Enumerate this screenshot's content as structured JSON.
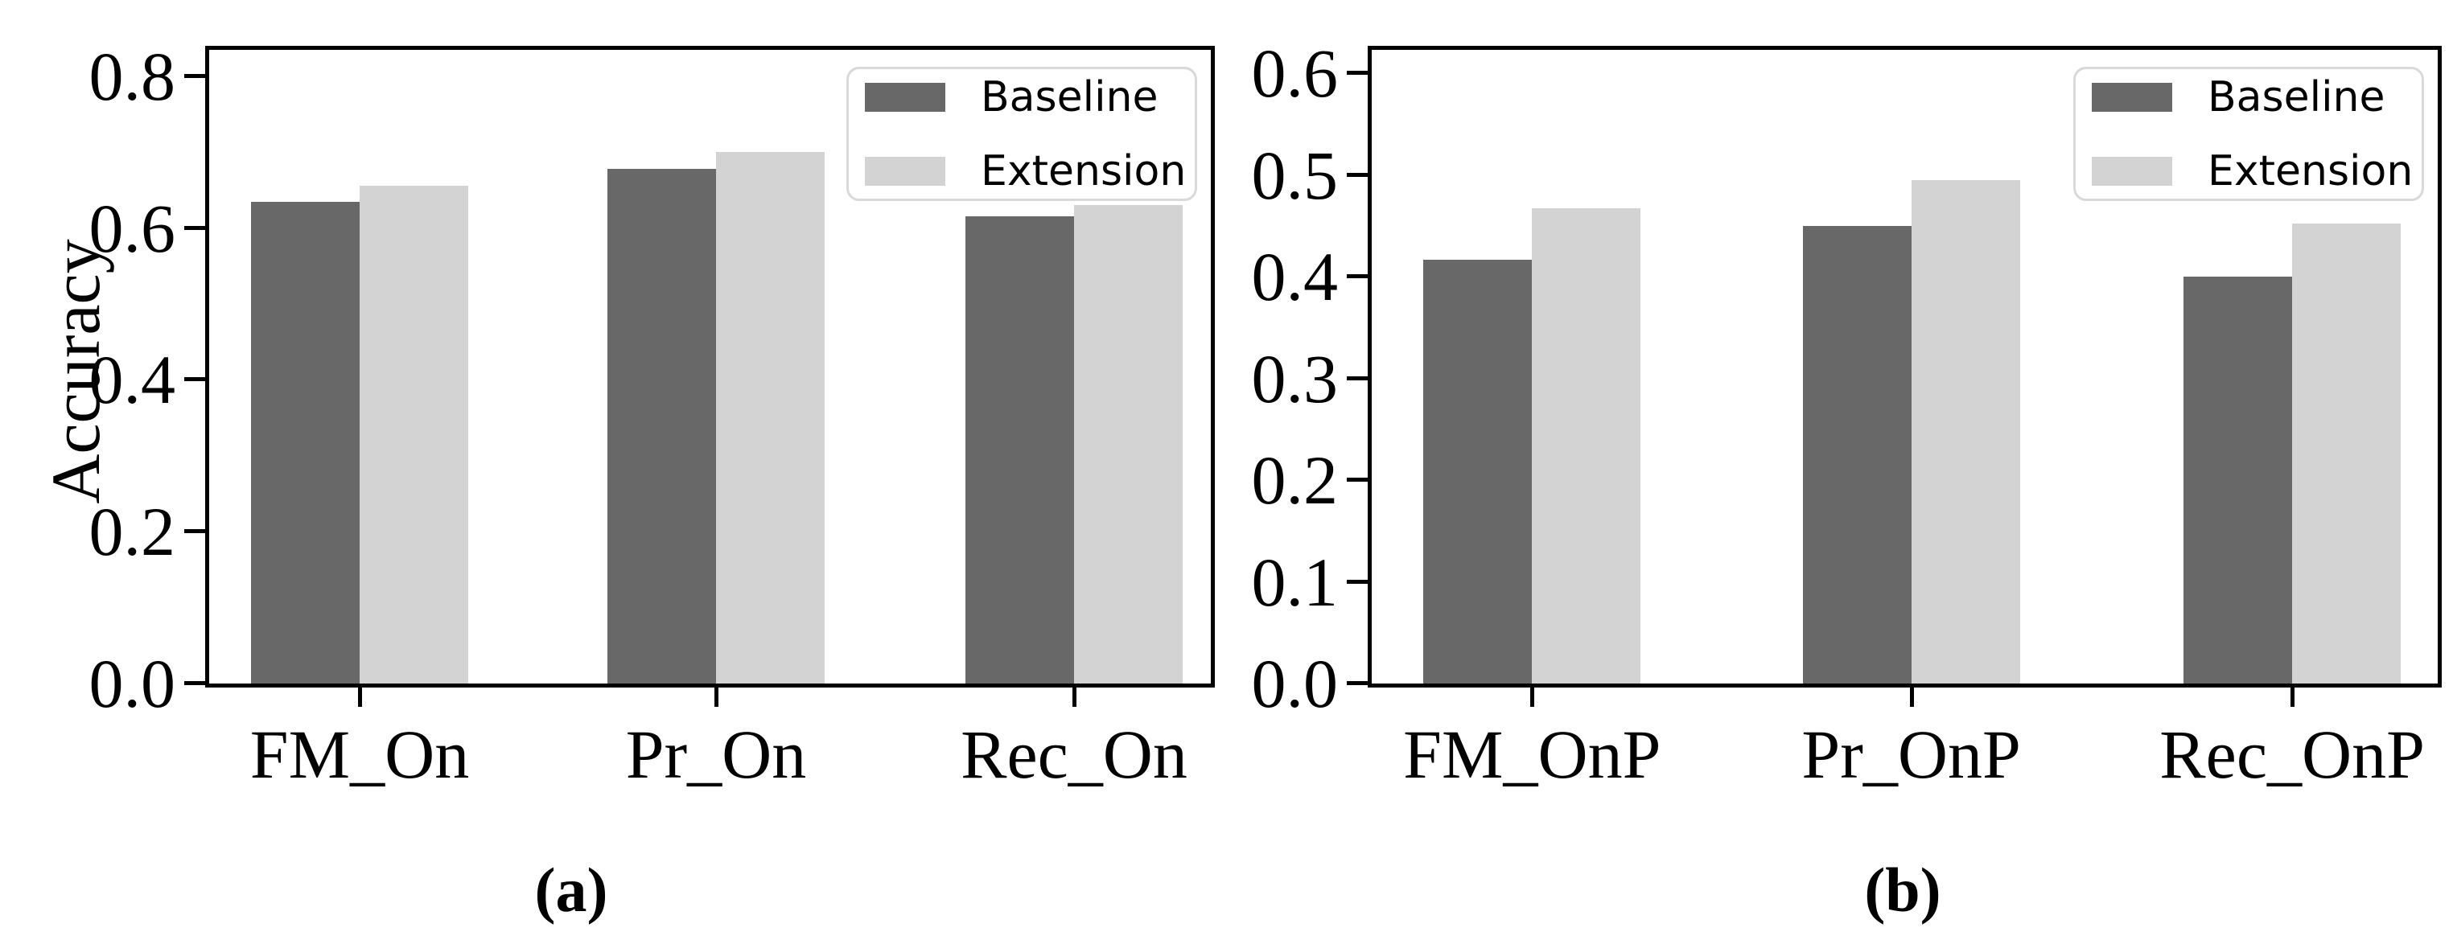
{
  "figure": {
    "background": "#ffffff",
    "ylabel": "Accuracy"
  },
  "colors": {
    "axis": "#000000",
    "legend_border": "#d9d9d9",
    "series": {
      "Baseline": "#686868",
      "Extension": "#d3d3d3"
    }
  },
  "legend": {
    "items": [
      "Baseline",
      "Extension"
    ]
  },
  "chart_data": [
    {
      "id": "a",
      "type": "bar",
      "title": "",
      "caption": "(a)",
      "xlabel": "",
      "ylabel": "Accuracy",
      "categories": [
        "FM_On",
        "Pr_On",
        "Rec_On"
      ],
      "series": [
        {
          "name": "Baseline",
          "values": [
            0.635,
            0.678,
            0.615
          ]
        },
        {
          "name": "Extension",
          "values": [
            0.656,
            0.7,
            0.63
          ]
        }
      ],
      "yticks": [
        0.0,
        0.2,
        0.4,
        0.6,
        0.8
      ],
      "ylim": [
        0,
        0.84
      ],
      "grid": false,
      "legend_position": "upper right"
    },
    {
      "id": "b",
      "type": "bar",
      "title": "",
      "caption": "(b)",
      "xlabel": "",
      "ylabel": "",
      "categories": [
        "FM_OnP",
        "Pr_OnP",
        "Rec_OnP"
      ],
      "series": [
        {
          "name": "Baseline",
          "values": [
            0.417,
            0.45,
            0.4
          ]
        },
        {
          "name": "Extension",
          "values": [
            0.467,
            0.495,
            0.452
          ]
        }
      ],
      "yticks": [
        0.0,
        0.1,
        0.2,
        0.3,
        0.4,
        0.5,
        0.6
      ],
      "ylim": [
        0,
        0.627
      ],
      "grid": false,
      "legend_position": "upper right"
    }
  ]
}
